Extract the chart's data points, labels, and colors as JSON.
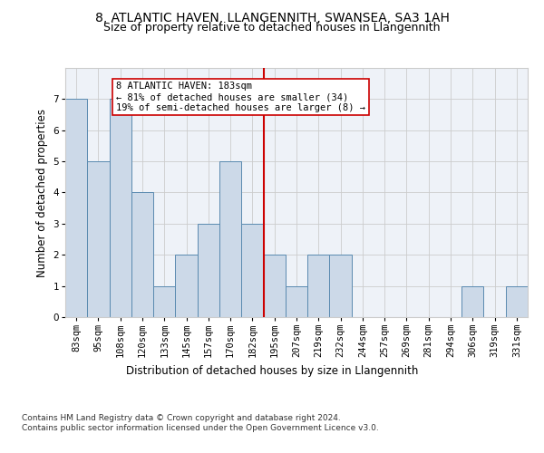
{
  "title_line1": "8, ATLANTIC HAVEN, LLANGENNITH, SWANSEA, SA3 1AH",
  "title_line2": "Size of property relative to detached houses in Llangennith",
  "xlabel": "Distribution of detached houses by size in Llangennith",
  "ylabel": "Number of detached properties",
  "categories": [
    "83sqm",
    "95sqm",
    "108sqm",
    "120sqm",
    "133sqm",
    "145sqm",
    "157sqm",
    "170sqm",
    "182sqm",
    "195sqm",
    "207sqm",
    "219sqm",
    "232sqm",
    "244sqm",
    "257sqm",
    "269sqm",
    "281sqm",
    "294sqm",
    "306sqm",
    "319sqm",
    "331sqm"
  ],
  "values": [
    7,
    5,
    7,
    4,
    1,
    2,
    3,
    5,
    3,
    2,
    1,
    2,
    2,
    0,
    0,
    0,
    0,
    0,
    1,
    0,
    1
  ],
  "bar_color": "#ccd9e8",
  "bar_edge_color": "#5a8ab0",
  "highlight_index": 8,
  "highlight_line_color": "#cc0000",
  "annotation_text": "8 ATLANTIC HAVEN: 183sqm\n← 81% of detached houses are smaller (34)\n19% of semi-detached houses are larger (8) →",
  "annotation_box_color": "white",
  "annotation_box_edge": "#cc0000",
  "ylim": [
    0,
    8
  ],
  "yticks": [
    0,
    1,
    2,
    3,
    4,
    5,
    6,
    7
  ],
  "grid_color": "#cccccc",
  "bg_color": "#eef2f8",
  "footnote": "Contains HM Land Registry data © Crown copyright and database right 2024.\nContains public sector information licensed under the Open Government Licence v3.0.",
  "title_fontsize": 10,
  "subtitle_fontsize": 9,
  "axis_label_fontsize": 8.5,
  "tick_fontsize": 7.5,
  "annotation_fontsize": 7.5,
  "footnote_fontsize": 6.5
}
